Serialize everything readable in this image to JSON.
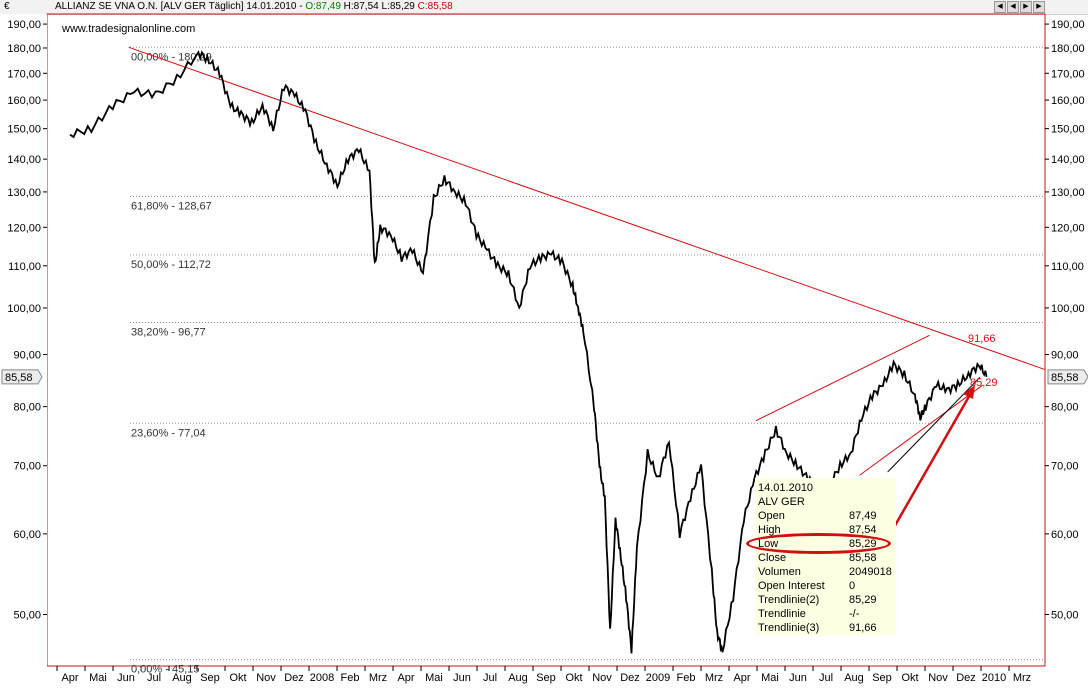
{
  "window": {
    "currency_symbol": "€",
    "caption_prefix": "ALLIANZ SE VNA O.N. [ALV GER  Täglich] 14.01.2010 - ",
    "open_text": "O:87,49",
    "high_low_text": " H:87,54 L:85,29 ",
    "close_text": "C:85,58",
    "source": "www.tradesignalonline.com"
  },
  "chart_data": {
    "type": "line",
    "title": "ALLIANZ SE VNA O.N. [ALV GER  Täglich] 14.01.2010",
    "scale": "log",
    "ylim": [
      45,
      195
    ],
    "y_ticks": [
      190,
      180,
      170,
      160,
      150,
      140,
      130,
      120,
      110,
      100,
      90,
      80,
      70,
      60,
      50
    ],
    "y_tick_labels": [
      "190,00",
      "180,00",
      "170,00",
      "160,00",
      "150,00",
      "140,00",
      "130,00",
      "120,00",
      "110,00",
      "100,00",
      "90,00",
      "80,00",
      "70,00",
      "60,00",
      "50,00"
    ],
    "x_ticks": [
      "Apr",
      "Mai",
      "Jun",
      "Jul",
      "Aug",
      "Sep",
      "Okt",
      "Nov",
      "Dez",
      "2008",
      "Feb",
      "Mrz",
      "Apr",
      "Mai",
      "Jun",
      "Jul",
      "Aug",
      "Sep",
      "Okt",
      "Nov",
      "Dez",
      "2009",
      "Feb",
      "Mrz",
      "Apr",
      "Mai",
      "Jun",
      "Jul",
      "Aug",
      "Sep",
      "Okt",
      "Nov",
      "Dez",
      "2010",
      "Mrz"
    ],
    "series": [
      {
        "values": [
          [
            0,
            148
          ],
          [
            2,
            150
          ],
          [
            4,
            158
          ],
          [
            6,
            163
          ],
          [
            8,
            162
          ],
          [
            10,
            168
          ],
          [
            12,
            178
          ],
          [
            13,
            175
          ],
          [
            14,
            170
          ],
          [
            15,
            158
          ],
          [
            16,
            155
          ],
          [
            17,
            152
          ],
          [
            18,
            158
          ],
          [
            19,
            150
          ],
          [
            20,
            165
          ],
          [
            21,
            162
          ],
          [
            22,
            156
          ],
          [
            23,
            145
          ],
          [
            24,
            138
          ],
          [
            25,
            132
          ],
          [
            26,
            140
          ],
          [
            27,
            143
          ],
          [
            28,
            136
          ],
          [
            28.5,
            110
          ],
          [
            29,
            120
          ],
          [
            30,
            118
          ],
          [
            31,
            112
          ],
          [
            32,
            114
          ],
          [
            33,
            108
          ],
          [
            34,
            128
          ],
          [
            35,
            134
          ],
          [
            36,
            130
          ],
          [
            37,
            127
          ],
          [
            38,
            118
          ],
          [
            39,
            114
          ],
          [
            40,
            110
          ],
          [
            41,
            108
          ],
          [
            42,
            100
          ],
          [
            43,
            110
          ],
          [
            44,
            112
          ],
          [
            45,
            113
          ],
          [
            46,
            111
          ],
          [
            47,
            105
          ],
          [
            47.5,
            100
          ],
          [
            48,
            95
          ],
          [
            49,
            80
          ],
          [
            49.5,
            70
          ],
          [
            50,
            65
          ],
          [
            50.5,
            48
          ],
          [
            51,
            62
          ],
          [
            51.5,
            57
          ],
          [
            52,
            52
          ],
          [
            52.5,
            46
          ],
          [
            53,
            58
          ],
          [
            54,
            72
          ],
          [
            55,
            68
          ],
          [
            56,
            74
          ],
          [
            57,
            60
          ],
          [
            58,
            65
          ],
          [
            59,
            70
          ],
          [
            60,
            55
          ],
          [
            60.5,
            48
          ],
          [
            61,
            46
          ],
          [
            62,
            52
          ],
          [
            63,
            62
          ],
          [
            64,
            68
          ],
          [
            65,
            72
          ],
          [
            66,
            76
          ],
          [
            67,
            72
          ],
          [
            68,
            70
          ],
          [
            69,
            68
          ],
          [
            70,
            66
          ],
          [
            71,
            67
          ],
          [
            72,
            70
          ],
          [
            73,
            72
          ],
          [
            74,
            78
          ],
          [
            75,
            82
          ],
          [
            76,
            84
          ],
          [
            77,
            88
          ],
          [
            78,
            86
          ],
          [
            79,
            82
          ],
          [
            79.5,
            78
          ],
          [
            80,
            80
          ],
          [
            81,
            84
          ],
          [
            82,
            83
          ],
          [
            83,
            84
          ],
          [
            84,
            86
          ],
          [
            85,
            88
          ],
          [
            85.7,
            85.58
          ]
        ]
      }
    ],
    "fibonacci_levels": [
      {
        "value": 180.29,
        "label": "00,00% - 180,29"
      },
      {
        "value": 128.67,
        "label": "61,80% - 128,67"
      },
      {
        "value": 112.72,
        "label": "50,00% - 112,72"
      },
      {
        "value": 96.77,
        "label": "38,20% - 96,77"
      },
      {
        "value": 77.04,
        "label": "23,60% - 77,04"
      },
      {
        "value": 45.15,
        "label": "0,00% - 45,15"
      }
    ],
    "trendline_labels": [
      "91,66",
      "85,29"
    ],
    "last_price_label": "85,58",
    "info_box": [
      {
        "k": "14.01.2010",
        "v": ""
      },
      {
        "k": "ALV GER",
        "v": ""
      },
      {
        "k": "Open",
        "v": "87,49"
      },
      {
        "k": "High",
        "v": "87,54"
      },
      {
        "k": "Low",
        "v": "85,29"
      },
      {
        "k": "Close",
        "v": "85,58"
      },
      {
        "k": "Volumen",
        "v": "2049018"
      },
      {
        "k": "Open Interest",
        "v": "0"
      },
      {
        "k": "Trendlinie(2)",
        "v": "85,29"
      },
      {
        "k": "Trendlinie",
        "v": "-/-"
      },
      {
        "k": "Trendlinie(3)",
        "v": "91,66"
      }
    ],
    "colors": {
      "price": "#000000",
      "trendline": "#d01010",
      "fib": "#909090",
      "highlight": "#d01010"
    }
  }
}
